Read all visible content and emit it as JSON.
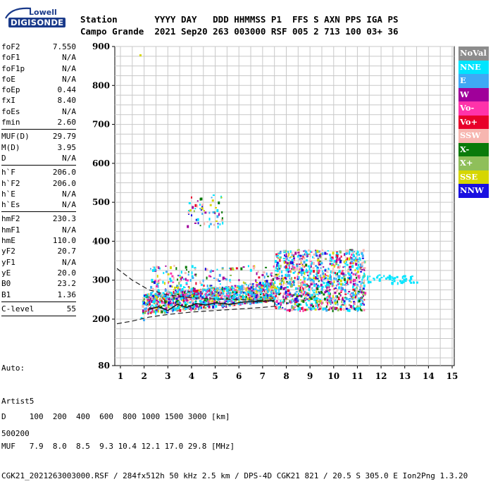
{
  "logo": {
    "top": "Lowell",
    "bottom": "DIGISONDE"
  },
  "header": {
    "labels": "Station       YYYY DAY   DDD HHMMSS P1  FFS S AXN PPS IGA PS",
    "values": "Campo Grande  2021 Sep20 263 003000 RSF 005 2 713 100 03+ 36"
  },
  "params": [
    [
      {
        "k": "foF2",
        "v": "7.550"
      },
      {
        "k": "foF1",
        "v": "N/A"
      },
      {
        "k": "foF1p",
        "v": "N/A"
      },
      {
        "k": "foE",
        "v": "N/A"
      },
      {
        "k": "foEp",
        "v": "0.44"
      },
      {
        "k": "fxI",
        "v": "8.40"
      },
      {
        "k": "foEs",
        "v": "N/A"
      },
      {
        "k": "fmin",
        "v": "2.60"
      }
    ],
    [
      {
        "k": "MUF(D)",
        "v": "29.79"
      },
      {
        "k": "M(D)",
        "v": "3.95"
      },
      {
        "k": "D",
        "v": "N/A"
      }
    ],
    [
      {
        "k": "h`F",
        "v": "206.0"
      },
      {
        "k": "h`F2",
        "v": "206.0"
      },
      {
        "k": "h`E",
        "v": "N/A"
      },
      {
        "k": "h`Es",
        "v": "N/A"
      }
    ],
    [
      {
        "k": "hmF2",
        "v": "230.3"
      },
      {
        "k": "hmF1",
        "v": "N/A"
      },
      {
        "k": "hmE",
        "v": "110.0"
      },
      {
        "k": "yF2",
        "v": "20.7"
      },
      {
        "k": "yF1",
        "v": "N/A"
      },
      {
        "k": "yE",
        "v": "20.0"
      },
      {
        "k": "B0",
        "v": "23.2"
      },
      {
        "k": "B1",
        "v": "1.36"
      }
    ],
    [
      {
        "k": "C-level",
        "v": "55"
      }
    ]
  ],
  "auto": [
    "Auto:",
    "Artist5",
    "500200"
  ],
  "footer": [
    "D     100  200  400  600  800 1000 1500 3000 [km]",
    "MUF   7.9  8.0  8.5  9.3 10.4 12.1 17.0 29.8 [MHz]",
    "CGK21_2021263003000.RSF / 284fx512h 50 kHz 2.5 km / DPS-4D CGK21 821 / 20.5 S 305.0 E Ion2Png 1.3.20"
  ],
  "legend": [
    {
      "label": "NoVal",
      "color": "#8c8c8c"
    },
    {
      "label": "NNE",
      "color": "#00e5ff"
    },
    {
      "label": "E",
      "color": "#3fa9f5"
    },
    {
      "label": "W",
      "color": "#a0009a"
    },
    {
      "label": "Vo-",
      "color": "#ff33aa"
    },
    {
      "label": "Vo+",
      "color": "#e8002a"
    },
    {
      "label": "SSW",
      "color": "#f7b6b0"
    },
    {
      "label": "X-",
      "color": "#0a7a0a"
    },
    {
      "label": "X+",
      "color": "#8fbf5a"
    },
    {
      "label": "SSE",
      "color": "#d6d600"
    },
    {
      "label": "NNW",
      "color": "#1a10e0"
    }
  ],
  "chart_data": {
    "type": "scatter",
    "title": "",
    "xlabel": "",
    "ylabel": "",
    "xlim": [
      0.85,
      15.1
    ],
    "ylim": [
      80,
      900
    ],
    "xticks": [
      1,
      2,
      3,
      4,
      5,
      6,
      7,
      8,
      9,
      10,
      11,
      12,
      13,
      14,
      15
    ],
    "yticks": [
      80,
      200,
      300,
      400,
      500,
      600,
      700,
      800,
      900
    ],
    "grid": true,
    "legend_placement": "right",
    "clusters": [
      {
        "series": "mixed",
        "x_range": [
          1.9,
          7.5
        ],
        "y_range": [
          215,
          265
        ],
        "density": "dense"
      },
      {
        "series": "mixed",
        "x_range": [
          2.2,
          7.5
        ],
        "y_range": [
          255,
          340
        ],
        "density": "medium"
      },
      {
        "series": "mixed",
        "x_range": [
          7.5,
          11.3
        ],
        "y_range": [
          225,
          380
        ],
        "density": "dense"
      },
      {
        "series": "NNE",
        "x_range": [
          11.4,
          13.5
        ],
        "y_range": [
          295,
          315
        ],
        "density": "sparse"
      },
      {
        "series": "mixed",
        "x_range": [
          3.8,
          5.4
        ],
        "y_range": [
          440,
          520
        ],
        "density": "sparse"
      }
    ],
    "outliers": [
      {
        "x": 1.8,
        "y": 880,
        "series": "SSE"
      },
      {
        "x": 1.85,
        "y": 205,
        "series": "NNE"
      },
      {
        "x": 1.95,
        "y": 200,
        "series": "E"
      }
    ],
    "profile_curves": {
      "upper": [
        [
          0.85,
          330
        ],
        [
          1.5,
          300
        ],
        [
          2.2,
          275
        ],
        [
          3.0,
          262
        ],
        [
          4.0,
          255
        ],
        [
          5.0,
          252
        ],
        [
          6.0,
          250
        ],
        [
          7.0,
          248
        ],
        [
          7.5,
          245
        ]
      ],
      "lower": [
        [
          0.85,
          188
        ],
        [
          1.5,
          195
        ],
        [
          2.2,
          205
        ],
        [
          3.0,
          212
        ],
        [
          4.0,
          218
        ],
        [
          5.0,
          222
        ],
        [
          6.0,
          226
        ],
        [
          7.0,
          230
        ],
        [
          7.5,
          233
        ]
      ],
      "trace": [
        [
          2.2,
          225
        ],
        [
          2.6,
          232
        ],
        [
          3.0,
          222
        ],
        [
          3.4,
          238
        ],
        [
          3.8,
          230
        ],
        [
          4.2,
          240
        ],
        [
          4.6,
          236
        ],
        [
          5.0,
          242
        ],
        [
          5.6,
          238
        ],
        [
          6.2,
          244
        ],
        [
          7.0,
          246
        ],
        [
          7.5,
          248
        ]
      ]
    }
  }
}
